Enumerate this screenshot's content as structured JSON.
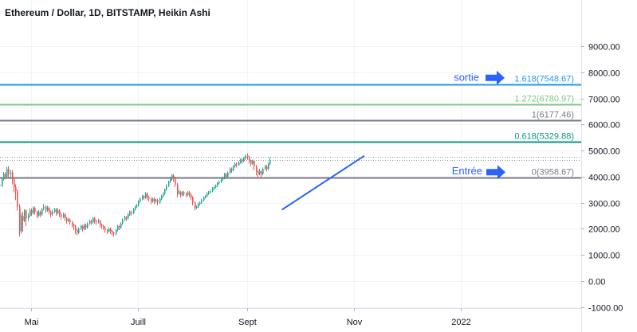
{
  "chart_data": {
    "type": "candlestick",
    "title": "Ethereum / Dollar, 1D, BITSTAMP, Heikin Ashi",
    "x_ticks": [
      {
        "label": "Mai",
        "date": "2021-05-01"
      },
      {
        "label": "Juill",
        "date": "2021-07-01"
      },
      {
        "label": "Sept",
        "date": "2021-09-01"
      },
      {
        "label": "Nov",
        "date": "2021-11-01"
      },
      {
        "label": "2022",
        "date": "2022-01-01"
      }
    ],
    "xlim": [
      "2021-04-01",
      "2022-01-28"
    ],
    "y_ticks": [
      "9000.00",
      "8000.00",
      "7000.00",
      "6000.00",
      "5000.00",
      "4000.00",
      "3000.00",
      "2000.00",
      "1000.00",
      "0.00",
      "-1000.00"
    ],
    "ylim": [
      -1000,
      10000
    ],
    "grid": true,
    "candles_start_date": "2021-04-01",
    "candles": [
      [
        2050,
        2350,
        2000,
        2400
      ],
      [
        2350,
        2200,
        2100,
        2420
      ],
      [
        2200,
        2420,
        2150,
        2480
      ],
      [
        2420,
        2600,
        2380,
        2650
      ],
      [
        2600,
        2500,
        2400,
        2640
      ],
      [
        2500,
        2800,
        2450,
        2880
      ],
      [
        2800,
        2750,
        2650,
        2850
      ],
      [
        2750,
        3050,
        2700,
        3100
      ],
      [
        3050,
        3300,
        3000,
        3380
      ],
      [
        3300,
        3250,
        3150,
        3380
      ],
      [
        3250,
        3480,
        3200,
        3550
      ],
      [
        3480,
        3700,
        3450,
        3760
      ],
      [
        3700,
        3650,
        3550,
        3760
      ],
      [
        3650,
        3900,
        3600,
        3960
      ],
      [
        3900,
        4100,
        3850,
        4180
      ],
      [
        4100,
        4000,
        3900,
        4180
      ],
      [
        4000,
        4300,
        3950,
        4380
      ],
      [
        4300,
        4100,
        3950,
        4400
      ],
      [
        4100,
        4150,
        3900,
        4250
      ],
      [
        4150,
        3900,
        3700,
        4250
      ],
      [
        3900,
        3600,
        3400,
        3950
      ],
      [
        3600,
        3450,
        3100,
        3700
      ],
      [
        3450,
        2850,
        2700,
        3500
      ],
      [
        2850,
        1900,
        1700,
        2950
      ],
      [
        1900,
        2500,
        1800,
        2600
      ],
      [
        2500,
        2300,
        1900,
        2650
      ],
      [
        2300,
        2700,
        2250,
        2750
      ],
      [
        2700,
        2400,
        2100,
        2750
      ],
      [
        2400,
        2500,
        2300,
        2600
      ],
      [
        2500,
        2700,
        2450,
        2780
      ],
      [
        2700,
        2600,
        2500,
        2780
      ],
      [
        2600,
        2800,
        2550,
        2850
      ],
      [
        2800,
        2650,
        2550,
        2850
      ],
      [
        2650,
        2500,
        2400,
        2700
      ],
      [
        2500,
        2650,
        2450,
        2720
      ],
      [
        2650,
        2550,
        2450,
        2700
      ],
      [
        2550,
        2750,
        2500,
        2800
      ],
      [
        2750,
        2850,
        2700,
        2950
      ],
      [
        2850,
        2700,
        2600,
        2900
      ],
      [
        2700,
        2800,
        2650,
        2880
      ],
      [
        2800,
        2650,
        2550,
        2850
      ],
      [
        2650,
        2550,
        2450,
        2700
      ],
      [
        2550,
        2650,
        2500,
        2720
      ],
      [
        2650,
        2750,
        2600,
        2800
      ],
      [
        2750,
        2600,
        2500,
        2800
      ],
      [
        2600,
        2700,
        2550,
        2780
      ],
      [
        2700,
        2550,
        2450,
        2750
      ],
      [
        2550,
        2450,
        2350,
        2600
      ],
      [
        2450,
        2550,
        2400,
        2620
      ],
      [
        2550,
        2400,
        2300,
        2600
      ],
      [
        2400,
        2300,
        2200,
        2450
      ],
      [
        2300,
        2350,
        2250,
        2420
      ],
      [
        2350,
        2250,
        2150,
        2400
      ],
      [
        2250,
        2150,
        2050,
        2300
      ],
      [
        2150,
        2100,
        1950,
        2200
      ],
      [
        2100,
        1950,
        1800,
        2150
      ],
      [
        1950,
        1850,
        1750,
        2000
      ],
      [
        1850,
        2000,
        1800,
        2050
      ],
      [
        2000,
        2100,
        1950,
        2150
      ],
      [
        2100,
        2000,
        1900,
        2150
      ],
      [
        2000,
        2150,
        1950,
        2200
      ],
      [
        2150,
        2050,
        1950,
        2200
      ],
      [
        2050,
        2200,
        2000,
        2250
      ],
      [
        2200,
        2300,
        2150,
        2350
      ],
      [
        2300,
        2250,
        2150,
        2350
      ],
      [
        2250,
        2400,
        2200,
        2450
      ],
      [
        2400,
        2300,
        2200,
        2450
      ],
      [
        2300,
        2250,
        2150,
        2350
      ],
      [
        2250,
        2300,
        2200,
        2380
      ],
      [
        2300,
        2150,
        2050,
        2350
      ],
      [
        2150,
        2100,
        2000,
        2200
      ],
      [
        2100,
        2050,
        1950,
        2150
      ],
      [
        2050,
        1950,
        1850,
        2100
      ],
      [
        1950,
        1900,
        1800,
        2000
      ],
      [
        1900,
        2000,
        1850,
        2050
      ],
      [
        2000,
        1900,
        1800,
        2050
      ],
      [
        1900,
        1850,
        1750,
        1950
      ],
      [
        1850,
        1800,
        1700,
        1900
      ],
      [
        1800,
        1950,
        1750,
        2000
      ],
      [
        1950,
        2100,
        1900,
        2150
      ],
      [
        2100,
        2050,
        1950,
        2150
      ],
      [
        2050,
        2200,
        2000,
        2250
      ],
      [
        2200,
        2350,
        2150,
        2400
      ],
      [
        2350,
        2450,
        2300,
        2500
      ],
      [
        2450,
        2400,
        2300,
        2500
      ],
      [
        2400,
        2550,
        2350,
        2600
      ],
      [
        2550,
        2650,
        2500,
        2700
      ],
      [
        2650,
        2600,
        2500,
        2700
      ],
      [
        2600,
        2750,
        2550,
        2800
      ],
      [
        2750,
        2850,
        2700,
        2900
      ],
      [
        2850,
        2900,
        2800,
        2950
      ],
      [
        2900,
        3050,
        2850,
        3100
      ],
      [
        3050,
        3150,
        3000,
        3200
      ],
      [
        3150,
        3250,
        3100,
        3300
      ],
      [
        3250,
        3200,
        3100,
        3300
      ],
      [
        3200,
        3350,
        3150,
        3400
      ],
      [
        3350,
        3200,
        3100,
        3400
      ],
      [
        3200,
        3150,
        3050,
        3250
      ],
      [
        3150,
        3050,
        2950,
        3200
      ],
      [
        3050,
        3150,
        3000,
        3200
      ],
      [
        3150,
        3050,
        2950,
        3200
      ],
      [
        3050,
        3100,
        3000,
        3150
      ],
      [
        3100,
        3000,
        2900,
        3150
      ],
      [
        3000,
        3150,
        2950,
        3200
      ],
      [
        3150,
        3250,
        3100,
        3300
      ],
      [
        3250,
        3350,
        3200,
        3400
      ],
      [
        3350,
        3500,
        3300,
        3550
      ],
      [
        3500,
        3650,
        3450,
        3700
      ],
      [
        3650,
        3800,
        3600,
        3850
      ],
      [
        3800,
        3950,
        3750,
        4000
      ],
      [
        3950,
        4050,
        3850,
        4100
      ],
      [
        4050,
        3950,
        3800,
        4100
      ],
      [
        3950,
        3700,
        3600,
        4000
      ],
      [
        3700,
        3350,
        3200,
        3750
      ],
      [
        3350,
        3400,
        3300,
        3500
      ],
      [
        3400,
        3300,
        3200,
        3450
      ],
      [
        3300,
        3400,
        3250,
        3450
      ],
      [
        3400,
        3350,
        3250,
        3450
      ],
      [
        3350,
        3300,
        3200,
        3400
      ],
      [
        3300,
        3400,
        3250,
        3450
      ],
      [
        3400,
        3300,
        3200,
        3450
      ],
      [
        3300,
        3200,
        3100,
        3350
      ],
      [
        3200,
        3000,
        2900,
        3250
      ],
      [
        3000,
        2800,
        2700,
        3050
      ],
      [
        2800,
        2850,
        2750,
        2900
      ],
      [
        2850,
        2950,
        2800,
        3000
      ],
      [
        2950,
        3000,
        2900,
        3050
      ],
      [
        3000,
        3100,
        2950,
        3150
      ],
      [
        3100,
        3200,
        3050,
        3250
      ],
      [
        3200,
        3250,
        3150,
        3300
      ],
      [
        3250,
        3350,
        3200,
        3400
      ],
      [
        3350,
        3400,
        3300,
        3450
      ],
      [
        3400,
        3450,
        3350,
        3500
      ],
      [
        3450,
        3550,
        3400,
        3600
      ],
      [
        3550,
        3600,
        3500,
        3650
      ],
      [
        3600,
        3650,
        3550,
        3700
      ],
      [
        3650,
        3750,
        3600,
        3800
      ],
      [
        3750,
        3800,
        3700,
        3850
      ],
      [
        3800,
        3900,
        3750,
        3950
      ],
      [
        3900,
        3950,
        3850,
        4000
      ],
      [
        3950,
        4100,
        3900,
        4150
      ],
      [
        4100,
        4000,
        3900,
        4150
      ],
      [
        4000,
        4150,
        3950,
        4200
      ],
      [
        4150,
        4300,
        4100,
        4350
      ],
      [
        4300,
        4250,
        4150,
        4350
      ],
      [
        4250,
        4400,
        4200,
        4450
      ],
      [
        4400,
        4500,
        4350,
        4550
      ],
      [
        4500,
        4450,
        4350,
        4550
      ],
      [
        4450,
        4550,
        4400,
        4600
      ],
      [
        4550,
        4650,
        4500,
        4700
      ],
      [
        4650,
        4600,
        4500,
        4700
      ],
      [
        4600,
        4700,
        4550,
        4750
      ],
      [
        4700,
        4800,
        4650,
        4850
      ],
      [
        4800,
        4750,
        4650,
        4900
      ],
      [
        4750,
        4600,
        4500,
        4800
      ],
      [
        4600,
        4500,
        4400,
        4650
      ],
      [
        4500,
        4600,
        4450,
        4650
      ],
      [
        4600,
        4400,
        4250,
        4650
      ],
      [
        4400,
        4200,
        4050,
        4450
      ],
      [
        4200,
        4100,
        3950,
        4250
      ],
      [
        4100,
        4200,
        4050,
        4300
      ],
      [
        4200,
        4100,
        3950,
        4250
      ],
      [
        4100,
        4300,
        4050,
        4350
      ],
      [
        4300,
        4400,
        4250,
        4450
      ],
      [
        4400,
        4300,
        4200,
        4450
      ],
      [
        4300,
        4500,
        4250,
        4550
      ],
      [
        4500,
        4600,
        4450,
        4750
      ]
    ],
    "fib_levels": [
      {
        "ratio_label": "1.618",
        "value": 7548.67,
        "label": "1.618(7548.67)",
        "color": "#2196f3"
      },
      {
        "ratio_label": "1.272",
        "value": 6780.97,
        "label": "1.272(6780.97)",
        "color": "#81c784"
      },
      {
        "ratio_label": "1",
        "value": 6177.46,
        "label": "1(6177.46)",
        "color": "#787b86"
      },
      {
        "ratio_label": "0.618",
        "value": 5329.88,
        "label": "0.618(5329.88)",
        "color": "#089981"
      },
      {
        "ratio_label": "0",
        "value": 3958.67,
        "label": "0(3958.67)",
        "color": "#787b86"
      }
    ],
    "dotted_levels": [
      4750,
      4640
    ],
    "trendline": [
      [
        "2021-09-21",
        2730
      ],
      [
        "2021-11-07",
        4800
      ]
    ],
    "annotations": [
      {
        "text": "sortie",
        "value": 7548.67
      },
      {
        "text": "Entrée",
        "value": 3958.67
      }
    ],
    "colors": {
      "up": "#26a69a",
      "down": "#ef5350",
      "text": "#131722",
      "grid": "#f0f3fa",
      "arrow": "#2962ff"
    }
  }
}
